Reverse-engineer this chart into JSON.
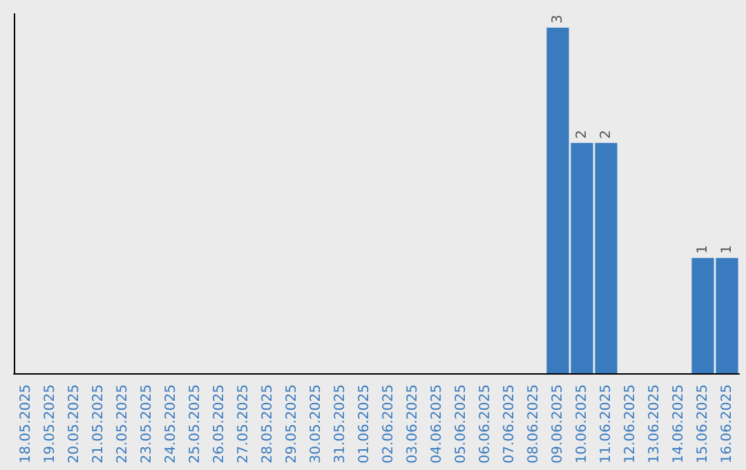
{
  "chart_data": {
    "type": "bar",
    "categories": [
      "18.05.2025",
      "19.05.2025",
      "20.05.2025",
      "21.05.2025",
      "22.05.2025",
      "23.05.2025",
      "24.05.2025",
      "25.05.2025",
      "26.05.2025",
      "27.05.2025",
      "28.05.2025",
      "29.05.2025",
      "30.05.2025",
      "31.05.2025",
      "01.06.2025",
      "02.06.2025",
      "03.06.2025",
      "04.06.2025",
      "05.06.2025",
      "06.06.2025",
      "07.06.2025",
      "08.06.2025",
      "09.06.2025",
      "10.06.2025",
      "11.06.2025",
      "12.06.2025",
      "13.06.2025",
      "14.06.2025",
      "15.06.2025",
      "16.06.2025"
    ],
    "values": [
      null,
      null,
      null,
      null,
      null,
      null,
      null,
      null,
      null,
      null,
      null,
      null,
      null,
      null,
      null,
      null,
      null,
      null,
      null,
      null,
      null,
      null,
      3,
      2,
      2,
      null,
      null,
      null,
      1,
      1
    ],
    "data_labels": true,
    "color": "#3a7bbf",
    "grid": false
  }
}
